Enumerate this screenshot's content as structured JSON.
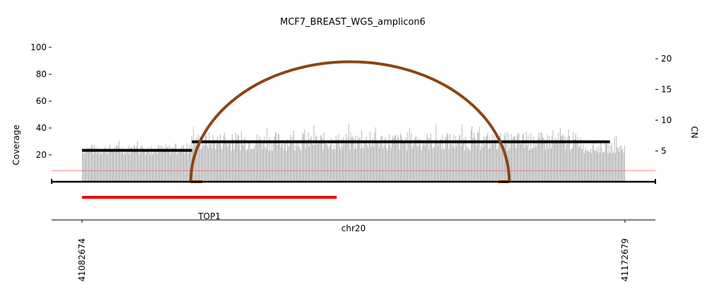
{
  "chart_data": {
    "type": "bar",
    "title": "MCF7_BREAST_WGS_amplicon6",
    "xlabel": "chr20",
    "ylabel": "Coverage",
    "y2label": "CN",
    "x_range": [
      41082674,
      41172679
    ],
    "x_ticks": [
      "41082674",
      "41172679"
    ],
    "ylim": [
      0,
      100
    ],
    "y_ticks": [
      20,
      40,
      60,
      80,
      100
    ],
    "y2lim": [
      0,
      20.5
    ],
    "y2_ticks": [
      5,
      10,
      15,
      20
    ],
    "grid": false,
    "coverage_profile": [
      {
        "start": 41082674,
        "end": 41100800,
        "mean": 24
      },
      {
        "start": 41100800,
        "end": 41165700,
        "mean": 30
      },
      {
        "start": 41165700,
        "end": 41172679,
        "mean": 25
      }
    ],
    "series": [
      {
        "name": "",
        "type": "segments",
        "color": "#000000",
        "unit": "CN",
        "values": [
          {
            "start": 41082674,
            "end": 41100900,
            "cn": 5.1
          },
          {
            "start": 41100900,
            "end": 41170200,
            "cn": 6.5
          }
        ]
      },
      {
        "name": "",
        "type": "reference-line",
        "color": "#e07070",
        "unit": "CN",
        "value": 1.8
      },
      {
        "name": "",
        "type": "breakpoint-arc",
        "color": "#8B4513",
        "unit": "CN",
        "start": 41100700,
        "end": 41153500,
        "peak": 19.5
      }
    ],
    "genes": [
      {
        "name": "TOP1",
        "start": 41082674,
        "end": 41124900,
        "color": "#ee0000"
      }
    ]
  }
}
